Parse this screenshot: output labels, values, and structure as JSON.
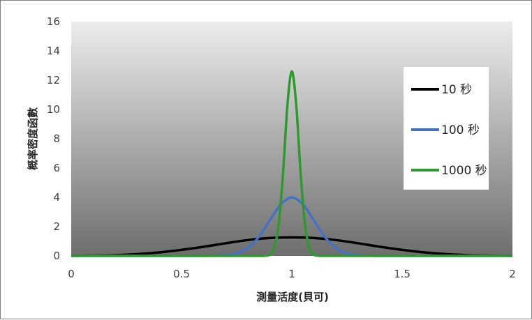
{
  "chart_data": {
    "type": "line",
    "title": "",
    "xlabel": "測量活度(貝可)",
    "ylabel": "概率密度函數",
    "xlim": [
      0,
      2
    ],
    "ylim": [
      0,
      16
    ],
    "x_ticks": [
      0,
      0.5,
      1,
      1.5,
      2
    ],
    "x_tick_labels": [
      "0",
      "0.5",
      "1",
      "1.5",
      "2"
    ],
    "y_ticks": [
      0,
      2,
      4,
      6,
      8,
      10,
      12,
      14,
      16
    ],
    "y_tick_labels": [
      "0",
      "2",
      "4",
      "6",
      "8",
      "10",
      "12",
      "14",
      "16"
    ],
    "grid": false,
    "legend_position": "right",
    "background": "gradient-light-gray-to-dark-gray",
    "series": [
      {
        "name": "10 秒",
        "color": "#000000",
        "x": [
          0,
          0.1,
          0.2,
          0.3,
          0.4,
          0.5,
          0.6,
          0.7,
          0.8,
          0.9,
          1.0,
          1.1,
          1.2,
          1.3,
          1.4,
          1.5,
          1.6,
          1.7,
          1.8,
          1.9,
          2.0
        ],
        "values": [
          0.005,
          0.02,
          0.05,
          0.12,
          0.24,
          0.41,
          0.62,
          0.86,
          1.08,
          1.22,
          1.26,
          1.22,
          1.08,
          0.86,
          0.62,
          0.41,
          0.24,
          0.12,
          0.05,
          0.02,
          0.005
        ]
      },
      {
        "name": "100 秒",
        "color": "#4472c4",
        "x": [
          0.6,
          0.7,
          0.75,
          0.8,
          0.85,
          0.9,
          0.95,
          1.0,
          1.05,
          1.1,
          1.15,
          1.2,
          1.25,
          1.3,
          1.4
        ],
        "values": [
          0.0,
          0.04,
          0.17,
          0.54,
          1.29,
          2.42,
          3.52,
          3.99,
          3.52,
          2.42,
          1.29,
          0.54,
          0.17,
          0.04,
          0.0
        ]
      },
      {
        "name": "1000 秒",
        "color": "#2e9a2e",
        "x": [
          0.88,
          0.9,
          0.92,
          0.94,
          0.96,
          0.98,
          1.0,
          1.02,
          1.04,
          1.06,
          1.08,
          1.1,
          1.12
        ],
        "values": [
          0.01,
          0.08,
          0.52,
          2.1,
          5.6,
          10.3,
          12.6,
          10.3,
          5.6,
          2.1,
          0.52,
          0.08,
          0.01
        ]
      }
    ]
  }
}
